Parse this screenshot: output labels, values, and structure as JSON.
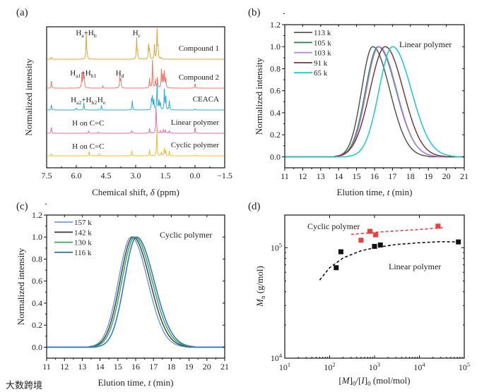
{
  "watermark": "大数跨境",
  "chart_data": [
    {
      "panel": "(a)",
      "type": "line",
      "subtype": "stacked-nmr-spectra",
      "xlabel": {
        "pre": "Chemical shift, ",
        "italic": "δ",
        "post": " (ppm)"
      },
      "ylabel": "Normalized intensity",
      "xlim": [
        7.5,
        -1.5
      ],
      "xticks": [
        "7.5",
        "6.0",
        "4.5",
        "3.0",
        "1.5",
        "0.0",
        "−1.5"
      ],
      "xtick_values": [
        7.5,
        6.0,
        4.5,
        3.0,
        1.5,
        0.0,
        -1.5
      ],
      "series": [
        {
          "name": "Compound 1",
          "color": "#e3a52a",
          "peaks": [
            [
              7.26,
              8
            ],
            [
              5.5,
              112
            ],
            [
              5.45,
              20
            ],
            [
              2.95,
              92
            ],
            [
              2.9,
              30
            ],
            [
              2.35,
              62
            ],
            [
              2.3,
              40
            ],
            [
              2.05,
              62
            ],
            [
              1.92,
              124
            ],
            [
              1.87,
              50
            ],
            [
              1.75,
              6
            ]
          ]
        },
        {
          "name": "Compound 2",
          "color": "#f27868",
          "peaks": [
            [
              7.26,
              30
            ],
            [
              5.72,
              62
            ],
            [
              5.65,
              62
            ],
            [
              5.6,
              50
            ],
            [
              4.66,
              10
            ],
            [
              3.8,
              55
            ],
            [
              3.75,
              35
            ],
            [
              2.3,
              40
            ],
            [
              2.15,
              120
            ],
            [
              2.0,
              35
            ],
            [
              1.9,
              45
            ],
            [
              1.7,
              80
            ],
            [
              1.62,
              55
            ],
            [
              1.55,
              70
            ],
            [
              1.48,
              40
            ],
            [
              0.0,
              20
            ]
          ]
        },
        {
          "name": "CEACA",
          "color": "#2aaedc",
          "peaks": [
            [
              7.26,
              22
            ],
            [
              6.0,
              8
            ],
            [
              5.62,
              30
            ],
            [
              4.73,
              20
            ],
            [
              3.17,
              40
            ],
            [
              2.2,
              45
            ],
            [
              2.15,
              55
            ],
            [
              2.08,
              40
            ],
            [
              1.92,
              110
            ],
            [
              1.82,
              40
            ],
            [
              1.75,
              30
            ],
            [
              1.55,
              90
            ],
            [
              1.48,
              55
            ],
            [
              1.3,
              40
            ],
            [
              0.0,
              4
            ]
          ]
        },
        {
          "name": "Linear polymer",
          "color": "#ee6aa6",
          "peaks": [
            [
              7.26,
              25
            ],
            [
              5.38,
              10
            ],
            [
              4.88,
              5
            ],
            [
              3.2,
              12
            ],
            [
              2.3,
              20
            ],
            [
              1.97,
              100
            ],
            [
              1.95,
              22
            ],
            [
              1.75,
              10
            ],
            [
              1.6,
              15
            ],
            [
              1.5,
              15
            ],
            [
              1.3,
              12
            ],
            [
              0.0,
              25
            ]
          ]
        },
        {
          "name": "Cyclic polymer",
          "color": "#f0bd2a",
          "peaks": [
            [
              7.26,
              8
            ],
            [
              5.35,
              18
            ],
            [
              4.85,
              8
            ],
            [
              3.2,
              20
            ],
            [
              2.3,
              25
            ],
            [
              1.93,
              110
            ],
            [
              1.7,
              15
            ],
            [
              1.55,
              30
            ],
            [
              1.48,
              22
            ],
            [
              1.3,
              20
            ],
            [
              0.0,
              3
            ]
          ]
        }
      ],
      "annotations": [
        {
          "series": "Compound 1",
          "ppm": 5.5,
          "parts": [
            {
              "t": "H"
            },
            {
              "t": "a",
              "sub": true
            },
            {
              "t": "+H"
            },
            {
              "t": "b",
              "sub": true
            }
          ]
        },
        {
          "series": "Compound 1",
          "ppm": 2.95,
          "parts": [
            {
              "t": "H"
            },
            {
              "t": "c",
              "sub": true
            }
          ]
        },
        {
          "series": "Compound 2",
          "ppm": 5.65,
          "parts": [
            {
              "t": "H"
            },
            {
              "t": "a1",
              "sub": true
            },
            {
              "t": "+H"
            },
            {
              "t": "b1",
              "sub": true
            }
          ]
        },
        {
          "series": "Compound 2",
          "ppm": 3.8,
          "parts": [
            {
              "t": "H"
            },
            {
              "t": "d",
              "sub": true
            }
          ]
        },
        {
          "series": "CEACA",
          "ppm": 5.62,
          "parts": [
            {
              "t": "H"
            },
            {
              "t": "a2",
              "sub": true
            },
            {
              "t": "+H"
            },
            {
              "t": "b2",
              "sub": true
            }
          ]
        },
        {
          "series": "CEACA",
          "ppm": 4.73,
          "parts": [
            {
              "t": "H"
            },
            {
              "t": "e",
              "sub": true
            }
          ]
        },
        {
          "series": "Linear polymer",
          "ppm": 5.4,
          "parts": [
            {
              "t": "H on C=C"
            }
          ]
        },
        {
          "series": "Cyclic polymer",
          "ppm": 5.4,
          "parts": [
            {
              "t": "H on C=C"
            }
          ]
        }
      ]
    },
    {
      "panel": "(b)",
      "type": "line",
      "xlabel": {
        "pre": "Elution time, ",
        "italic": "t",
        "post": " (min)"
      },
      "ylabel": "Normalized intensity",
      "xlim": [
        11,
        21
      ],
      "ylim": [
        -0.1,
        1.2
      ],
      "xticks": [
        "11",
        "12",
        "13",
        "14",
        "15",
        "16",
        "17",
        "18",
        "19",
        "20",
        "21"
      ],
      "yticks": [
        "0.0",
        "0.2",
        "0.4",
        "0.6",
        "0.8",
        "1.0",
        "1.2"
      ],
      "annotation": "Linear polymer",
      "legend_position": "top-left",
      "series": [
        {
          "name": "113 k",
          "color": "#555555",
          "peak_time": 15.9,
          "sigma_left": 0.62,
          "sigma_right": 0.95
        },
        {
          "name": "105 k",
          "color": "#2e8b57",
          "peak_time": 16.2,
          "sigma_left": 0.7,
          "sigma_right": 1.0
        },
        {
          "name": "103 k",
          "color": "#b07fe0",
          "peak_time": 16.25,
          "sigma_left": 0.7,
          "sigma_right": 0.98
        },
        {
          "name": "91 k",
          "color": "#7a3a3a",
          "peak_time": 16.6,
          "sigma_left": 0.85,
          "sigma_right": 1.0
        },
        {
          "name": "65 k",
          "color": "#1cc8c8",
          "peak_time": 17.0,
          "sigma_left": 0.75,
          "sigma_right": 1.05
        }
      ]
    },
    {
      "panel": "(c)",
      "type": "line",
      "xlabel": {
        "pre": "Elution time, ",
        "italic": "t",
        "post": " (min)"
      },
      "ylabel": "Normalized intensity",
      "xlim": [
        11,
        21
      ],
      "ylim": [
        -0.1,
        1.2
      ],
      "xticks": [
        "11",
        "12",
        "13",
        "14",
        "15",
        "16",
        "17",
        "18",
        "19",
        "20",
        "21"
      ],
      "yticks": [
        "0.0",
        "0.2",
        "0.4",
        "0.6",
        "0.8",
        "1.0",
        "1.2"
      ],
      "annotation": "Cyclic polymer",
      "legend_position": "top-left",
      "series": [
        {
          "name": "157 k",
          "color": "#6fa0d8",
          "peak_time": 15.75,
          "sigma_left": 0.72,
          "sigma_right": 0.92
        },
        {
          "name": "142 k",
          "color": "#444444",
          "peak_time": 15.85,
          "sigma_left": 0.72,
          "sigma_right": 0.95
        },
        {
          "name": "130 k",
          "color": "#3aaa5a",
          "peak_time": 15.95,
          "sigma_left": 0.72,
          "sigma_right": 0.97
        },
        {
          "name": "116 k",
          "color": "#2a6fd6",
          "peak_time": 16.05,
          "sigma_left": 0.68,
          "sigma_right": 0.98
        }
      ]
    },
    {
      "panel": "(d)",
      "type": "scatter",
      "xscale": "log",
      "yscale": "log",
      "xlabel": "[M]0/[I]0 (mol/mol)",
      "xlabel_parts": [
        {
          "t": "["
        },
        {
          "t": "M",
          "it": true
        },
        {
          "t": "]"
        },
        {
          "t": "0",
          "sub": true
        },
        {
          "t": "/["
        },
        {
          "t": "I",
          "it": true
        },
        {
          "t": "]"
        },
        {
          "t": "0",
          "sub": true
        },
        {
          "t": " (mol/mol)"
        }
      ],
      "ylabel": "Mn (g/mol)",
      "ylabel_parts": [
        {
          "t": "M",
          "it": true
        },
        {
          "t": "n",
          "sub": true
        },
        {
          "t": " (g/mol)"
        }
      ],
      "xlim": [
        10,
        100000
      ],
      "ylim": [
        10000,
        198000
      ],
      "xticks": [
        {
          "base": "10",
          "exp": "1"
        },
        {
          "base": "10",
          "exp": "2"
        },
        {
          "base": "10",
          "exp": "3"
        },
        {
          "base": "10",
          "exp": "4"
        },
        {
          "base": "10",
          "exp": "5"
        }
      ],
      "yticks": [
        {
          "base": "10",
          "exp": "4"
        },
        {
          "base": "10",
          "exp": "5"
        }
      ],
      "series": [
        {
          "name": "Cyclic polymer",
          "color": "#e8403f",
          "points": [
            [
              500,
              117000
            ],
            [
              790,
              141000
            ],
            [
              1060,
              131000
            ],
            [
              26000,
              157000
            ]
          ],
          "fit": [
            [
              300,
              132000
            ],
            [
              1000,
              138000
            ],
            [
              5000,
              144000
            ],
            [
              35000,
              152000
            ]
          ]
        },
        {
          "name": "Linear polymer",
          "color": "#111111",
          "points": [
            [
              140,
              66000
            ],
            [
              178,
              92000
            ],
            [
              1000,
              103000
            ],
            [
              1350,
              106000
            ],
            [
              74000,
              113000
            ]
          ],
          "fit": [
            [
              60,
              51000
            ],
            [
              100,
              66000
            ],
            [
              200,
              81000
            ],
            [
              500,
              94000
            ],
            [
              1000,
              100000
            ],
            [
              3000,
              107000
            ],
            [
              10000,
              111000
            ],
            [
              30000,
              113500
            ],
            [
              70000,
              113000
            ]
          ]
        }
      ]
    }
  ]
}
